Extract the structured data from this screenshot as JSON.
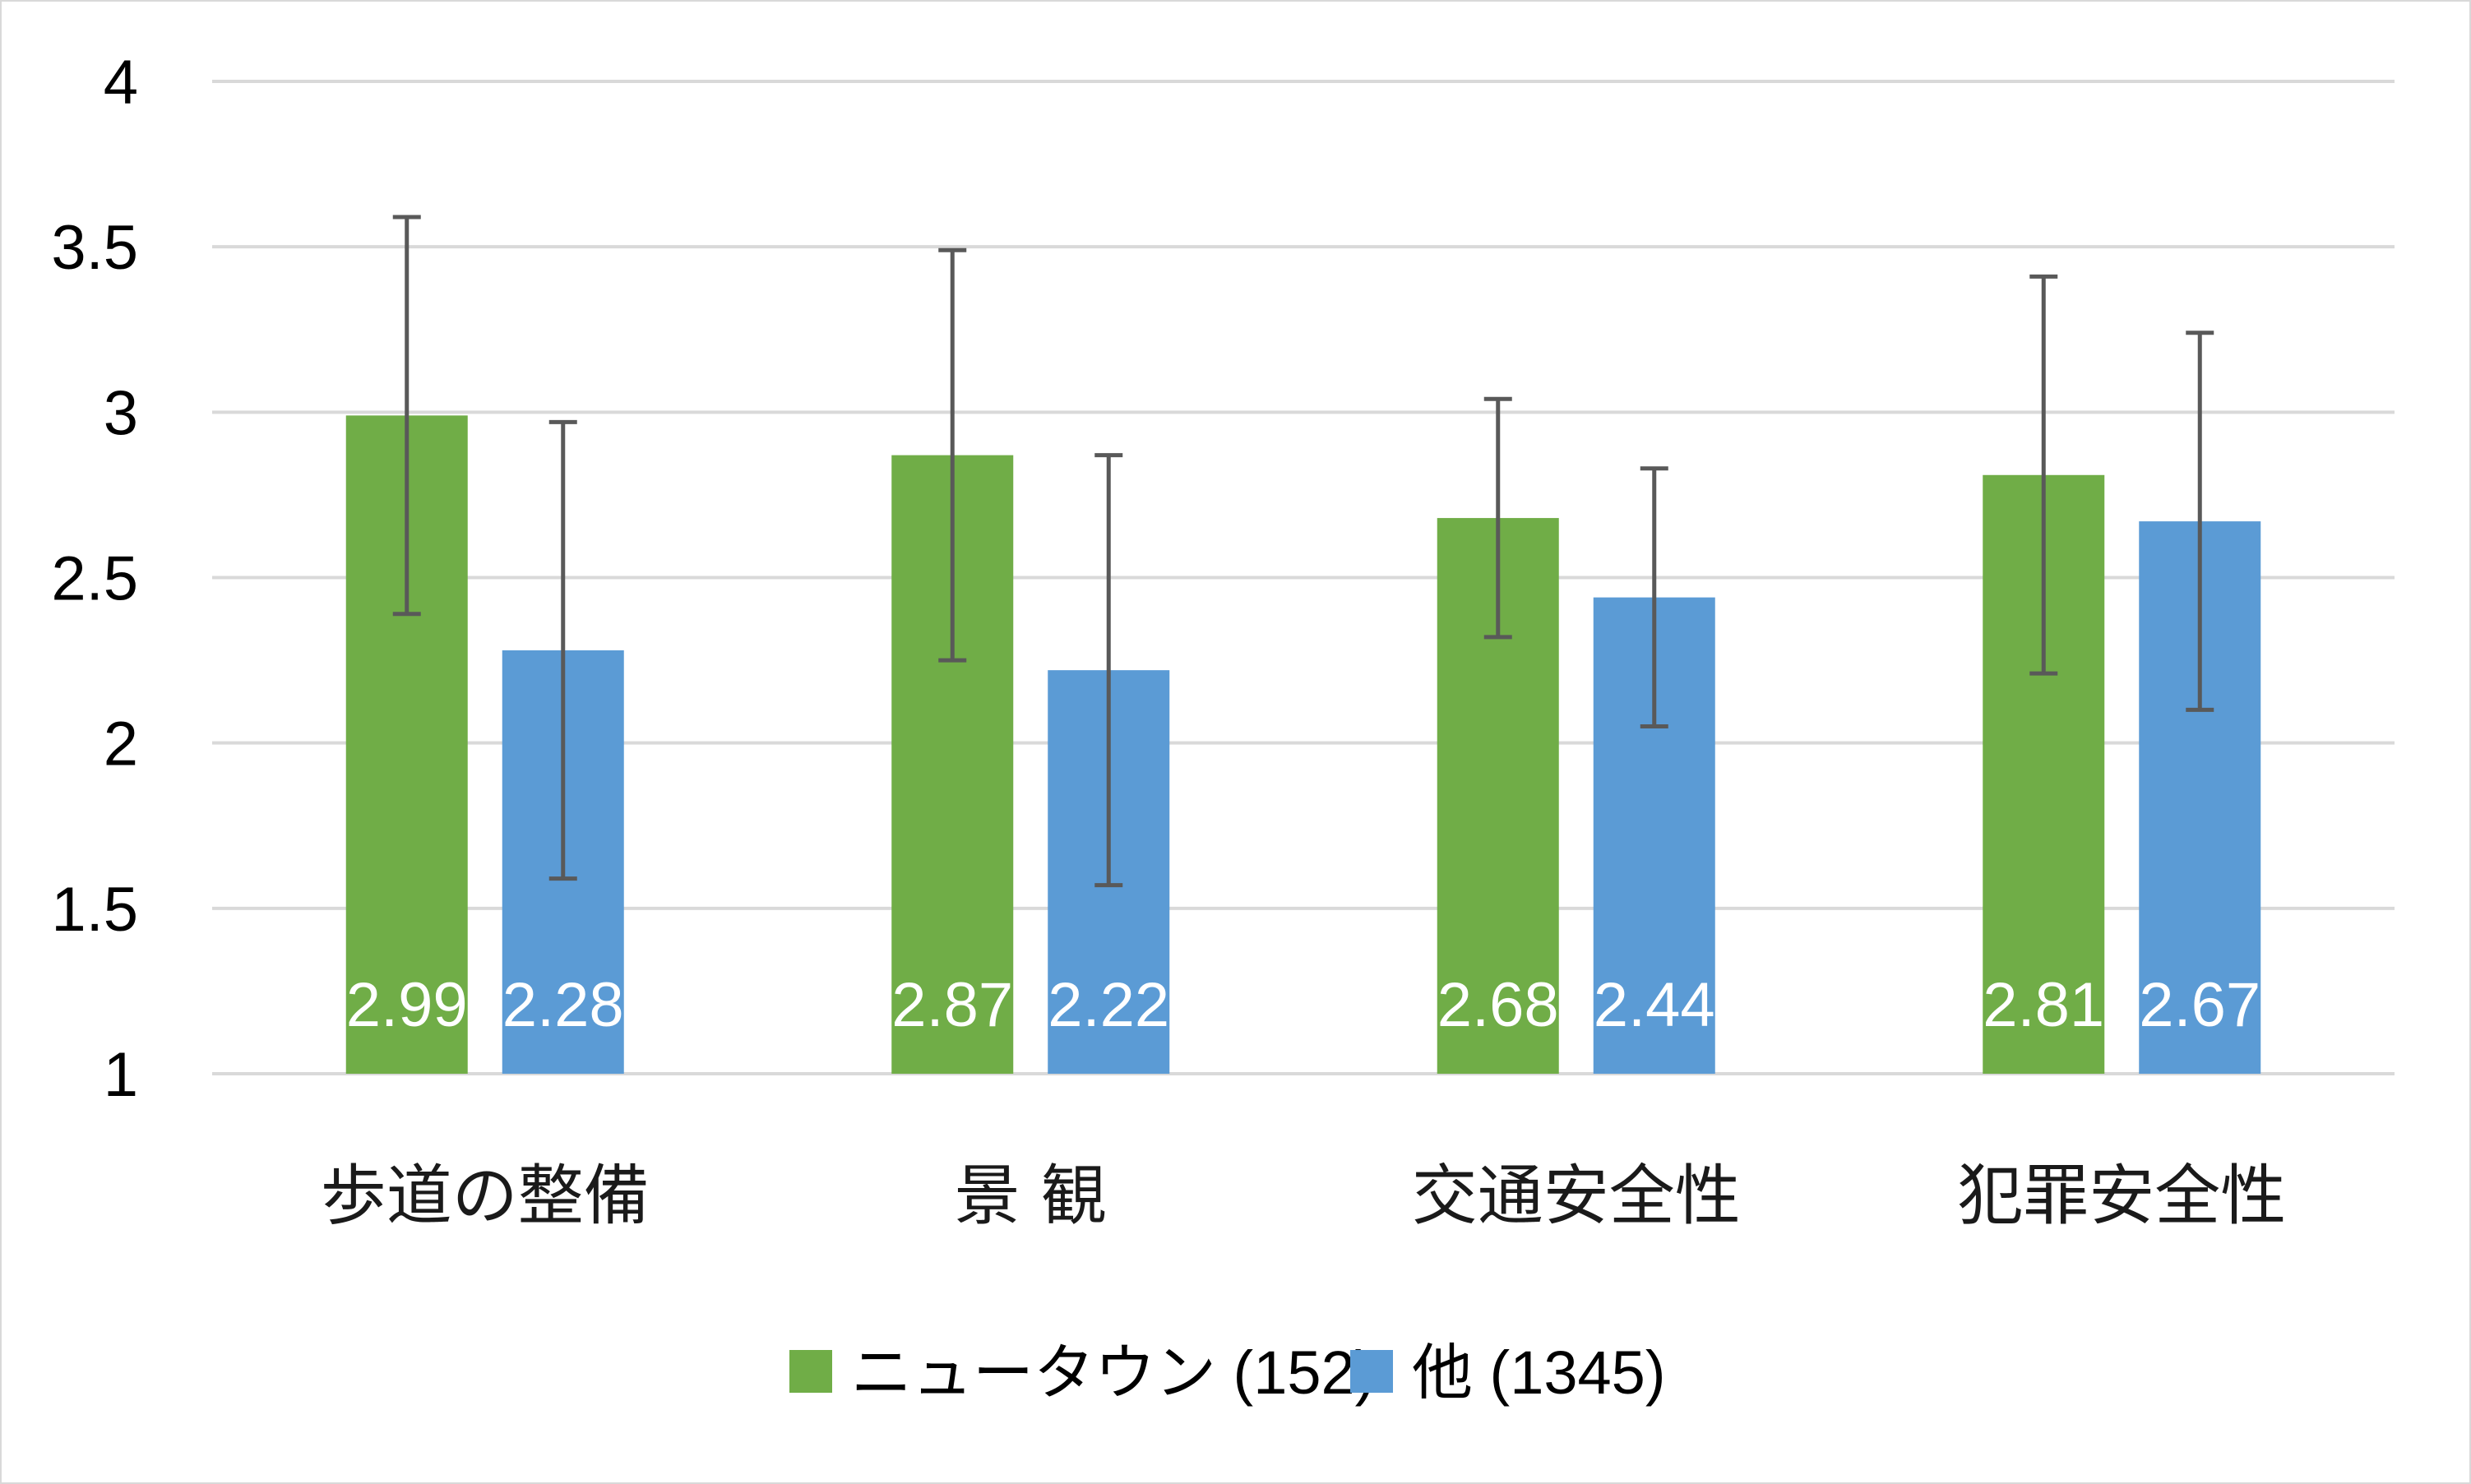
{
  "chart_data": {
    "type": "bar",
    "title": "",
    "xlabel": "",
    "ylabel": "",
    "ylim": [
      1,
      4
    ],
    "yticks": [
      1,
      1.5,
      2,
      2.5,
      3,
      3.5,
      4
    ],
    "grid": true,
    "legend_position": "bottom",
    "categories": [
      "歩道の整備",
      "景 観",
      "交通安全性",
      "犯罪安全性"
    ],
    "series": [
      {
        "name": "ニュータウン (152)",
        "color": "#70ad47",
        "values": [
          2.99,
          2.87,
          2.68,
          2.81
        ],
        "labels": [
          "2.99",
          "2.87",
          "2.68",
          "2.81"
        ],
        "error_low": [
          2.39,
          2.25,
          2.32,
          2.21
        ],
        "error_high": [
          3.59,
          3.49,
          3.04,
          3.41
        ]
      },
      {
        "name": "他 (1345)",
        "color": "#5b9bd5",
        "values": [
          2.28,
          2.22,
          2.44,
          2.67
        ],
        "labels": [
          "2.28",
          "2.22",
          "2.44",
          "2.67"
        ],
        "error_low": [
          1.59,
          1.57,
          2.05,
          2.1
        ],
        "error_high": [
          2.97,
          2.87,
          2.83,
          3.24
        ]
      }
    ],
    "colors": {
      "gridline": "#d9d9d9",
      "error_bar": "#595959",
      "border": "#d9d9d9"
    }
  }
}
